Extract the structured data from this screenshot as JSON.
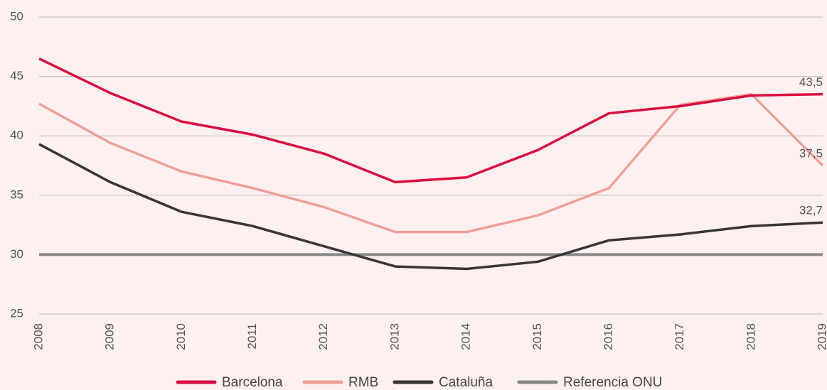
{
  "chart_data": {
    "type": "line",
    "x": [
      2008,
      2009,
      2010,
      2011,
      2012,
      2013,
      2014,
      2015,
      2016,
      2017,
      2018,
      2019
    ],
    "series": [
      {
        "name": "Barcelona",
        "color": "#d90d3f",
        "values": [
          46.5,
          43.6,
          41.2,
          40.1,
          38.5,
          36.1,
          36.5,
          38.8,
          41.9,
          42.5,
          43.4,
          43.5
        ],
        "value_labels": [
          null,
          null,
          null,
          null,
          null,
          null,
          null,
          null,
          null,
          null,
          null,
          "43,5"
        ]
      },
      {
        "name": "RMB",
        "color": "#f0a098",
        "values": [
          42.7,
          39.4,
          37.0,
          35.6,
          34.0,
          31.9,
          31.9,
          33.3,
          35.6,
          42.6,
          43.5,
          37.5
        ],
        "value_labels": [
          null,
          null,
          null,
          null,
          null,
          null,
          null,
          null,
          null,
          null,
          null,
          "37,5"
        ]
      },
      {
        "name": "Cataluña",
        "color": "#3a3535",
        "values": [
          39.3,
          36.1,
          33.6,
          32.4,
          30.7,
          29.0,
          28.8,
          29.4,
          31.2,
          31.7,
          32.4,
          32.7
        ],
        "value_labels": [
          null,
          null,
          null,
          null,
          null,
          null,
          null,
          null,
          null,
          null,
          null,
          "32,7"
        ]
      },
      {
        "name": "Referencia ONU",
        "color": "#888888",
        "values": [
          30,
          30,
          30,
          30,
          30,
          30,
          30,
          30,
          30,
          30,
          30,
          30
        ]
      }
    ],
    "xlim": [
      2008,
      2019
    ],
    "xticks": [
      2008,
      2009,
      2010,
      2011,
      2012,
      2013,
      2014,
      2015,
      2016,
      2017,
      2018,
      2019
    ],
    "ylim": [
      25,
      50
    ],
    "yticks": [
      25,
      30,
      35,
      40,
      45,
      50
    ],
    "grid": true,
    "legend": "bottom"
  }
}
